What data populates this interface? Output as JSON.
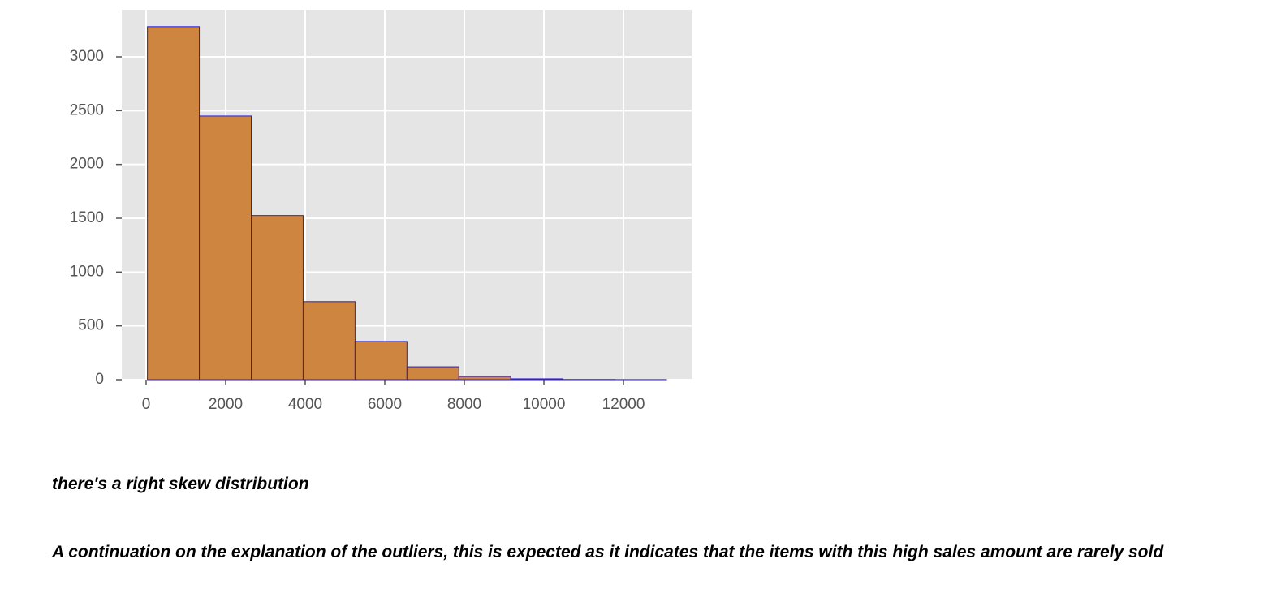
{
  "chart_data": {
    "type": "histogram",
    "bins": [
      33,
      1338,
      2643,
      3948,
      5253,
      6558,
      7863,
      9168,
      10473,
      11778,
      13083
    ],
    "counts": [
      3280,
      2450,
      1525,
      725,
      355,
      120,
      30,
      8,
      2,
      1
    ],
    "color": "#cd853f",
    "edgecolor": "#2a1ad0",
    "xlim": [
      -612,
      13714
    ],
    "ylim": [
      0,
      3437
    ],
    "xticks": [
      0,
      2000,
      4000,
      6000,
      8000,
      10000,
      12000
    ],
    "yticks": [
      0,
      500,
      1000,
      1500,
      2000,
      2500,
      3000
    ],
    "grid": true
  },
  "notes": [
    "there's a right skew distribution",
    "A continuation on the explanation of the outliers, this is expected as it indicates that the items with this high sales amount are rarely sold"
  ]
}
